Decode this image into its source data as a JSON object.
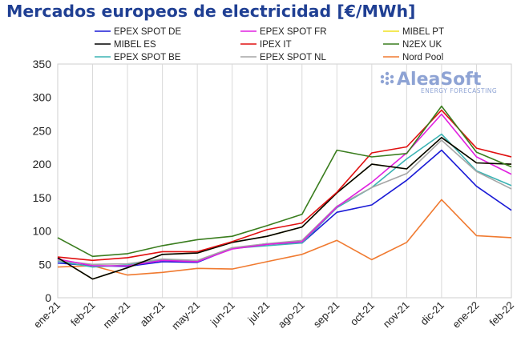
{
  "title": "Mercados europeos de electricidad [€/MWh]",
  "logo": {
    "name": "AleaSoft",
    "tagline": "ENERGY FORECASTING"
  },
  "chart_data": {
    "type": "line",
    "title": "Mercados europeos de electricidad [€/MWh]",
    "xlabel": "",
    "ylabel": "",
    "ylim": [
      0,
      350
    ],
    "yticks": [
      0,
      50,
      100,
      150,
      200,
      250,
      300,
      350
    ],
    "grid": "vertical",
    "legend_position": "top",
    "categories": [
      "ene-21",
      "feb-21",
      "mar-21",
      "abr-21",
      "may-21",
      "jun-21",
      "jul-21",
      "ago-21",
      "sep-21",
      "oct-21",
      "nov-21",
      "dic-21",
      "ene-22",
      "feb-22"
    ],
    "series": [
      {
        "name": "EPEX SPOT DE",
        "color": "#1a1ad6",
        "values": [
          52,
          48,
          47,
          54,
          53,
          74,
          81,
          82,
          128,
          139,
          176,
          221,
          167,
          131
        ]
      },
      {
        "name": "EPEX SPOT FR",
        "color": "#e020e0",
        "values": [
          58,
          48,
          48,
          56,
          54,
          73,
          80,
          84,
          136,
          173,
          217,
          275,
          211,
          185
        ]
      },
      {
        "name": "MIBEL PT",
        "color": "#f0e020",
        "values": [
          60,
          28,
          45,
          65,
          67,
          83,
          92,
          106,
          157,
          200,
          193,
          240,
          202,
          200
        ]
      },
      {
        "name": "MIBEL ES",
        "color": "#000000",
        "values": [
          60,
          28,
          45,
          65,
          67,
          83,
          92,
          106,
          157,
          200,
          193,
          240,
          202,
          200
        ]
      },
      {
        "name": "IPEX IT",
        "color": "#e01010",
        "values": [
          61,
          56,
          60,
          69,
          69,
          84,
          102,
          112,
          158,
          217,
          226,
          281,
          224,
          211
        ]
      },
      {
        "name": "N2EX UK",
        "color": "#3a7d1e",
        "values": [
          90,
          62,
          66,
          78,
          87,
          92,
          108,
          125,
          221,
          211,
          216,
          287,
          218,
          196
        ]
      },
      {
        "name": "EPEX SPOT BE",
        "color": "#3bb3b3",
        "values": [
          55,
          46,
          49,
          57,
          54,
          74,
          78,
          82,
          135,
          165,
          208,
          245,
          190,
          168
        ]
      },
      {
        "name": "EPEX SPOT NL",
        "color": "#a6a6a6",
        "values": [
          56,
          50,
          51,
          58,
          56,
          75,
          81,
          86,
          137,
          165,
          186,
          236,
          189,
          163
        ]
      },
      {
        "name": "Nord Pool",
        "color": "#f07a30",
        "values": [
          46,
          48,
          34,
          38,
          44,
          43,
          54,
          65,
          86,
          57,
          83,
          147,
          93,
          90
        ]
      }
    ]
  }
}
